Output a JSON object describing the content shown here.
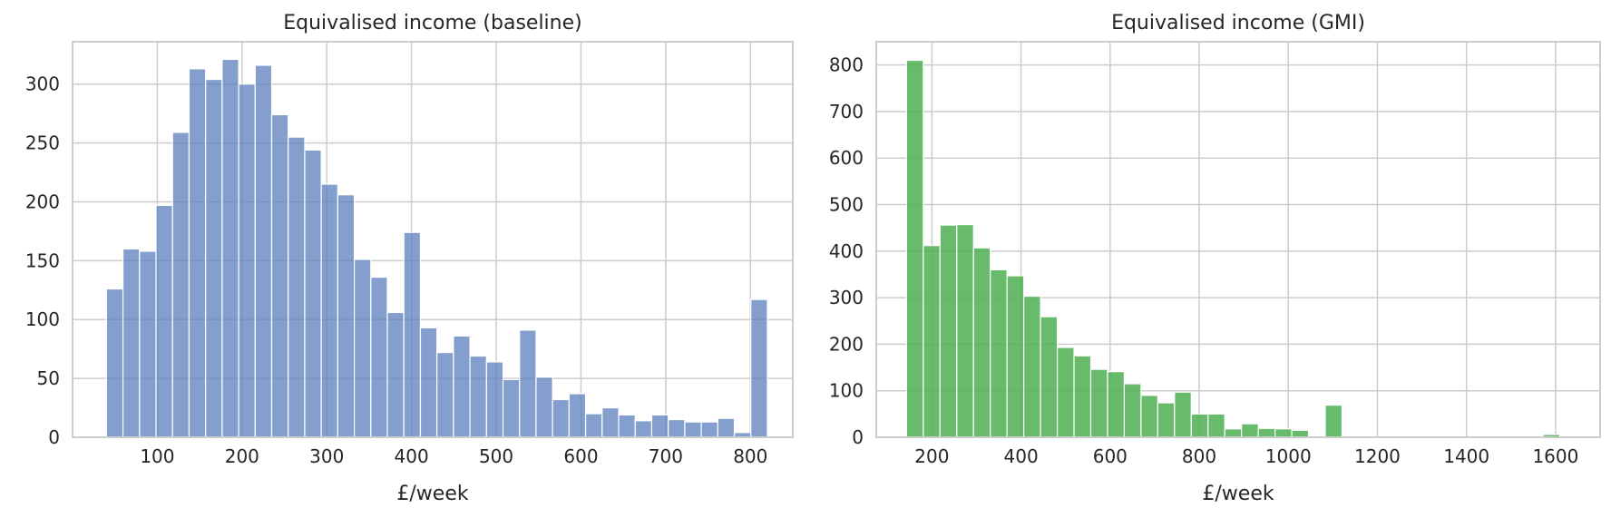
{
  "chart_data": [
    {
      "type": "bar",
      "title": "Equivalised income (baseline)",
      "xlabel": "£/week",
      "ylabel": "",
      "color": "#5b7fbc",
      "opacity": 0.75,
      "grid": true,
      "xlim": [
        0,
        850
      ],
      "ylim": [
        0,
        336
      ],
      "xticks": [
        100,
        200,
        300,
        400,
        500,
        600,
        700,
        800
      ],
      "yticks": [
        0,
        50,
        100,
        150,
        200,
        250,
        300
      ],
      "bins": {
        "start": 40,
        "width": 19.5,
        "counts": [
          126,
          160,
          158,
          197,
          259,
          313,
          304,
          321,
          300,
          316,
          274,
          255,
          244,
          215,
          206,
          151,
          136,
          106,
          174,
          93,
          72,
          86,
          69,
          64,
          49,
          91,
          51,
          32,
          37,
          20,
          25,
          19,
          14,
          19,
          15,
          13,
          13,
          16,
          4,
          117
        ]
      }
    },
    {
      "type": "bar",
      "title": "Equivalised income (GMI)",
      "xlabel": "£/week",
      "ylabel": "",
      "color": "#4caf50",
      "opacity": 0.85,
      "grid": true,
      "xlim": [
        75,
        1700
      ],
      "ylim": [
        0,
        850
      ],
      "xticks": [
        200,
        400,
        600,
        800,
        1000,
        1200,
        1400,
        1600
      ],
      "yticks": [
        0,
        100,
        200,
        300,
        400,
        500,
        600,
        700,
        800
      ],
      "bins": {
        "start": 143,
        "width": 37.6,
        "counts": [
          810,
          412,
          456,
          457,
          407,
          360,
          347,
          303,
          259,
          193,
          175,
          146,
          141,
          115,
          90,
          74,
          97,
          50,
          50,
          18,
          29,
          19,
          18,
          15,
          1,
          69,
          0,
          2,
          1,
          0,
          1,
          0,
          0,
          0,
          0,
          0,
          0,
          0,
          6,
          0
        ]
      }
    }
  ]
}
